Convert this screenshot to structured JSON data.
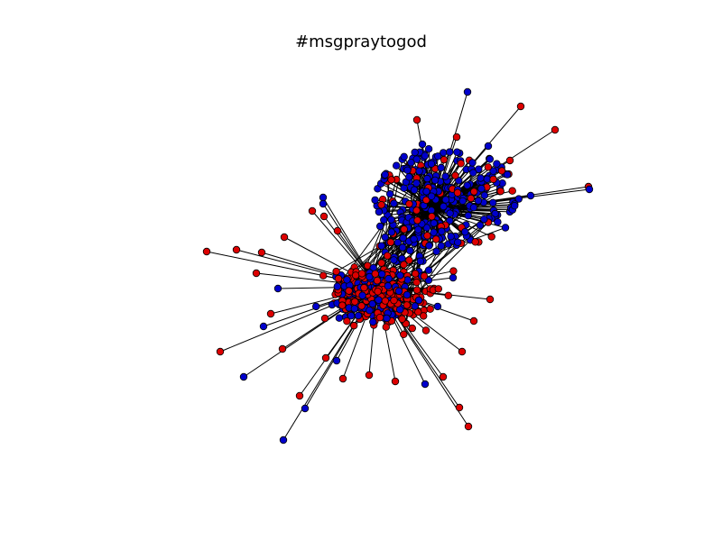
{
  "title": "#msgpraytogod",
  "colors": {
    "group_a": "#0000cc",
    "group_b": "#dd0000",
    "edge": "#000000",
    "node_outline": "#000000",
    "background": "#ffffff"
  }
}
